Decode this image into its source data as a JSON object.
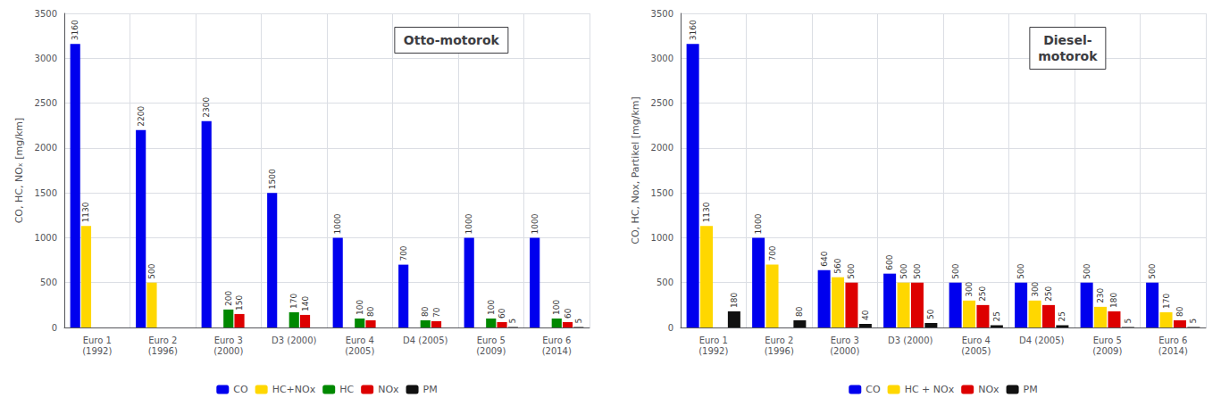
{
  "chart_data": [
    {
      "type": "bar",
      "title": "Otto-motorok",
      "y_label": "CO, HC, NOₓ [mg/km]",
      "categories": [
        "Euro 1\n(1992)",
        "Euro 2\n(1996)",
        "Euro 3\n(2000)",
        "D3 (2000)",
        "Euro 4\n(2005)",
        "D4 (2005)",
        "Euro 5\n(2009)",
        "Euro 6\n(2014)"
      ],
      "series": [
        {
          "name": "CO",
          "color": "#0000EE",
          "values": [
            3160,
            2200,
            2300,
            1500,
            1000,
            700,
            1000,
            1000
          ]
        },
        {
          "name": "HC+NOx",
          "color": "#FFD700",
          "values": [
            1130,
            500,
            0,
            0,
            0,
            0,
            0,
            0
          ],
          "value_labels": [
            "1130",
            "500",
            null,
            null,
            null,
            null,
            null,
            null
          ]
        },
        {
          "name": "HC",
          "color": "#008800",
          "values": [
            0,
            0,
            200,
            170,
            100,
            80,
            100,
            100
          ],
          "value_labels": [
            null,
            null,
            "200",
            "170",
            "100",
            "80",
            "100",
            "100"
          ]
        },
        {
          "name": "NOx",
          "color": "#DD0000",
          "values": [
            0,
            0,
            150,
            140,
            80,
            70,
            60,
            60
          ],
          "value_labels": [
            null,
            null,
            "150",
            "140",
            "80",
            "70",
            "60",
            "60"
          ]
        },
        {
          "name": "PM",
          "color": "#111111",
          "values": [
            0,
            0,
            0,
            0,
            0,
            0,
            5,
            5
          ],
          "value_labels": [
            null,
            null,
            null,
            null,
            null,
            null,
            "5",
            "5"
          ]
        }
      ],
      "ylim": [
        0,
        3500
      ],
      "yticks": [
        0,
        500,
        1000,
        1500,
        2000,
        2500,
        3000,
        3500
      ],
      "grid": true,
      "legend": "bottom",
      "data_labels": true
    },
    {
      "type": "bar",
      "title": "Diesel-\nmotorok",
      "y_label": "CO, HC, Nox, Partikel [mg/km]",
      "categories": [
        "Euro 1\n(1992)",
        "Euro 2\n(1996)",
        "Euro 3\n(2000)",
        "D3 (2000)",
        "Euro 4\n(2005)",
        "D4 (2005)",
        "Euro 5\n(2009)",
        "Euro 6\n(2014)"
      ],
      "series": [
        {
          "name": "CO",
          "color": "#0000EE",
          "values": [
            3160,
            1000,
            640,
            600,
            500,
            500,
            500,
            500
          ]
        },
        {
          "name": "HC + NOx",
          "color": "#FFD700",
          "values": [
            1130,
            700,
            560,
            500,
            300,
            300,
            230,
            170
          ]
        },
        {
          "name": "NOx",
          "color": "#DD0000",
          "values": [
            0,
            0,
            500,
            500,
            250,
            250,
            180,
            80
          ],
          "value_labels": [
            null,
            null,
            "500",
            "500",
            "250",
            "250",
            "180",
            "80"
          ]
        },
        {
          "name": "PM",
          "color": "#111111",
          "values": [
            180,
            80,
            40,
            50,
            25,
            25,
            5,
            5
          ]
        }
      ],
      "ylim": [
        0,
        3500
      ],
      "yticks": [
        0,
        500,
        1000,
        1500,
        2000,
        2500,
        3000,
        3500
      ],
      "grid": true,
      "legend": "bottom",
      "data_labels": true
    }
  ]
}
